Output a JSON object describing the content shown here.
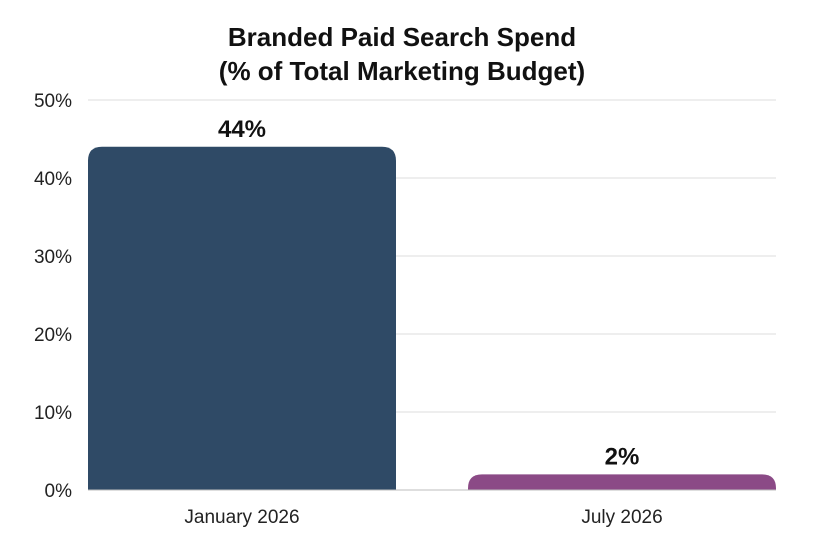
{
  "chart_data": {
    "type": "bar",
    "title": "Branded Paid Search Spend",
    "subtitle": "(% of Total Marketing Budget)",
    "categories": [
      "January 2026",
      "July 2026"
    ],
    "values": [
      44,
      2
    ],
    "data_labels": [
      "44%",
      "2%"
    ],
    "colors": [
      "#2f4a66",
      "#8b4a86"
    ],
    "ylim": [
      0,
      50
    ],
    "yticks": [
      0,
      10,
      20,
      30,
      40,
      50
    ],
    "ytick_labels": [
      "0%",
      "10%",
      "20%",
      "30%",
      "40%",
      "50%"
    ],
    "grid": true,
    "legend": "none"
  }
}
